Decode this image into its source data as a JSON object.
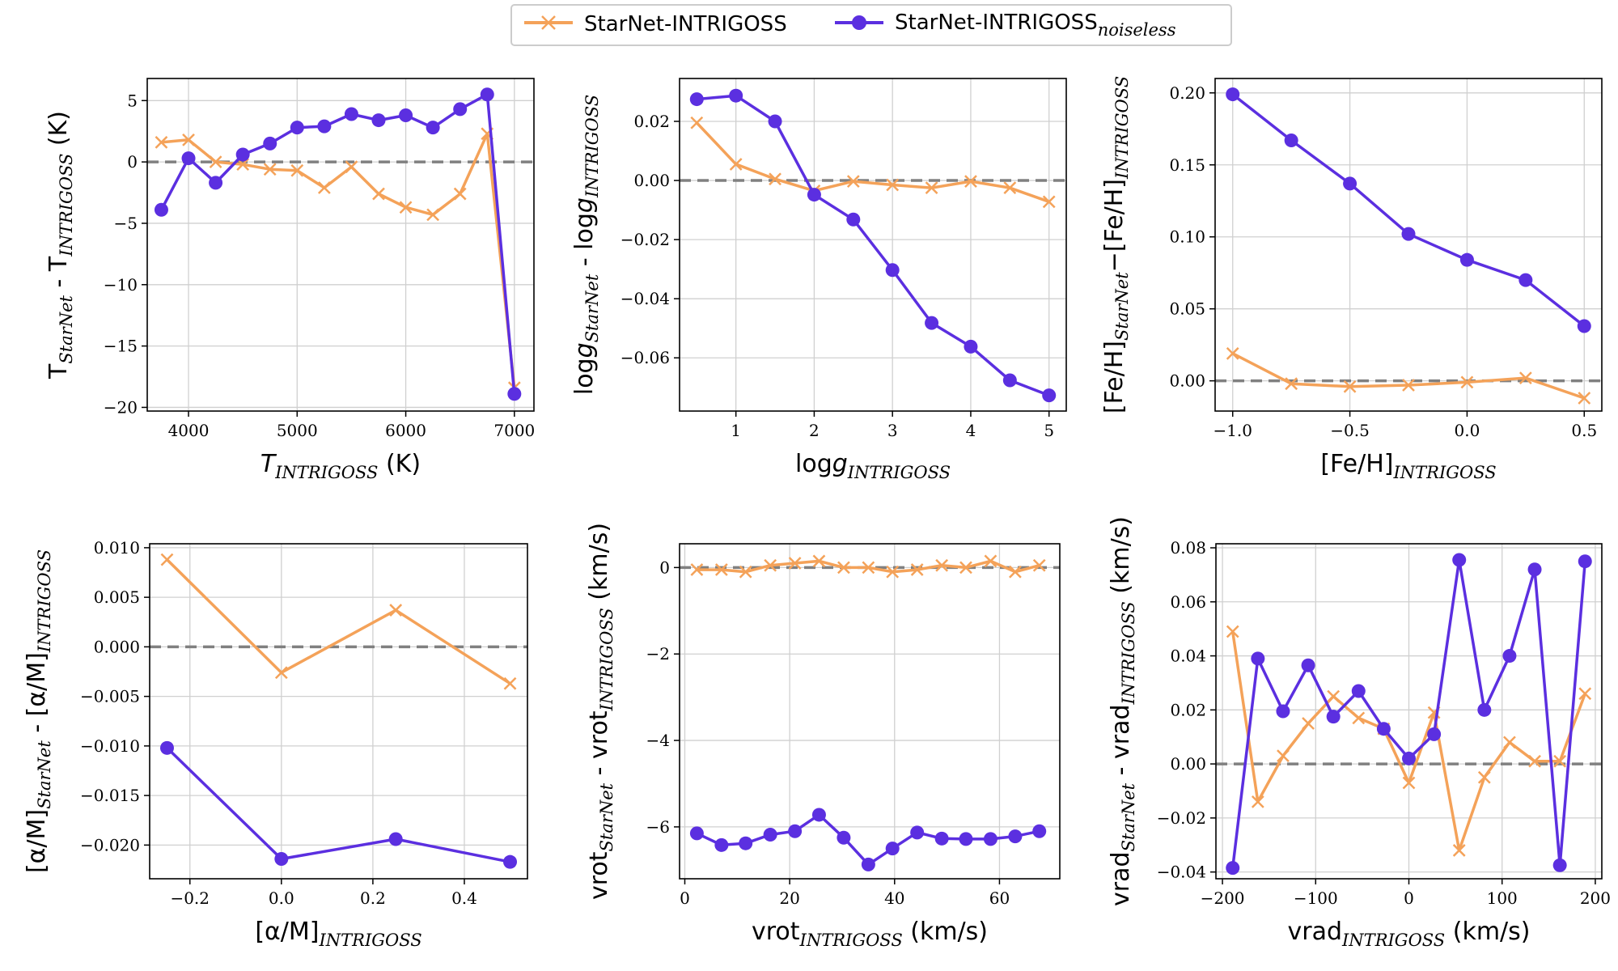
{
  "colors": {
    "noisy": "#F4A259",
    "noiseless": "#5B2FE0",
    "zero_line": "#808080",
    "grid": "#d0d0d0"
  },
  "legend": {
    "entries": [
      {
        "label": "StarNet-INTRIGOSS",
        "sub": "",
        "marker": "x",
        "series": "noisy"
      },
      {
        "label": "StarNet-INTRIGOSS",
        "sub": "noiseless",
        "marker": "o",
        "series": "noiseless"
      }
    ],
    "placement": "top-center"
  },
  "chart_data": [
    {
      "id": "teff",
      "type": "line",
      "xlabel": {
        "pre": "T",
        "sub": "INTRIGOSS",
        "post": " (K)",
        "italic_main": true
      },
      "ylabel": {
        "parts": [
          [
            "T",
            ""
          ],
          [
            "StarNet",
            "sub"
          ],
          [
            " - T",
            ""
          ],
          [
            "INTRIGOSS",
            "sub"
          ],
          [
            " (K)",
            ""
          ]
        ]
      },
      "xlim": [
        3620,
        7180
      ],
      "ylim": [
        -20.3,
        6.8
      ],
      "xticks": [
        4000,
        5000,
        6000,
        7000
      ],
      "xtick_labels": [
        "4000",
        "5000",
        "6000",
        "7000"
      ],
      "yticks": [
        -20,
        -15,
        -10,
        -5,
        0,
        5
      ],
      "ytick_labels": [
        "−20",
        "−15",
        "−10",
        "−5",
        "0",
        "5"
      ],
      "series": [
        {
          "name": "StarNet-INTRIGOSS",
          "key": "noisy",
          "marker": "x",
          "x": [
            3750,
            4000,
            4250,
            4500,
            4750,
            5000,
            5250,
            5500,
            5750,
            6000,
            6250,
            6500,
            6750,
            7000
          ],
          "y": [
            1.6,
            1.8,
            0.0,
            -0.2,
            -0.6,
            -0.7,
            -2.1,
            -0.4,
            -2.6,
            -3.7,
            -4.3,
            -2.6,
            2.3,
            -18.4
          ]
        },
        {
          "name": "StarNet-INTRIGOSS noiseless",
          "key": "noiseless",
          "marker": "o",
          "x": [
            3750,
            4000,
            4250,
            4500,
            4750,
            5000,
            5250,
            5500,
            5750,
            6000,
            6250,
            6500,
            6750,
            7000
          ],
          "y": [
            -3.9,
            0.3,
            -1.7,
            0.6,
            1.5,
            2.8,
            2.9,
            3.9,
            3.4,
            3.8,
            2.8,
            4.3,
            5.5,
            -18.9
          ]
        }
      ]
    },
    {
      "id": "logg",
      "type": "line",
      "xlabel": {
        "pre": "log",
        "sub": "INTRIGOSS",
        "post": "",
        "g": true
      },
      "ylabel": {
        "parts": [
          [
            "log",
            ""
          ],
          [
            "g",
            "it"
          ],
          [
            "StarNet",
            "sub"
          ],
          [
            " - log",
            ""
          ],
          [
            "g",
            "it"
          ],
          [
            "INTRIGOSS",
            "sub"
          ]
        ]
      },
      "xlim": [
        0.28,
        5.22
      ],
      "ylim": [
        -0.078,
        0.0345
      ],
      "xticks": [
        1,
        2,
        3,
        4,
        5
      ],
      "xtick_labels": [
        "1",
        "2",
        "3",
        "4",
        "5"
      ],
      "yticks": [
        -0.06,
        -0.04,
        -0.02,
        0.0,
        0.02
      ],
      "ytick_labels": [
        "−0.06",
        "−0.04",
        "−0.02",
        "0.00",
        "0.02"
      ],
      "series": [
        {
          "name": "StarNet-INTRIGOSS",
          "key": "noisy",
          "marker": "x",
          "x": [
            0.5,
            1.0,
            1.5,
            2.0,
            2.5,
            3.0,
            3.5,
            4.0,
            4.5,
            5.0
          ],
          "y": [
            0.0195,
            0.0055,
            0.0005,
            -0.0035,
            -0.0003,
            -0.0015,
            -0.0025,
            -0.0003,
            -0.0025,
            -0.0072
          ]
        },
        {
          "name": "StarNet-INTRIGOSS noiseless",
          "key": "noiseless",
          "marker": "o",
          "x": [
            0.5,
            1.0,
            1.5,
            2.0,
            2.5,
            3.0,
            3.5,
            4.0,
            4.5,
            5.0
          ],
          "y": [
            0.0275,
            0.0287,
            0.02,
            -0.0048,
            -0.0132,
            -0.0303,
            -0.0482,
            -0.0562,
            -0.0676,
            -0.0727
          ]
        }
      ]
    },
    {
      "id": "feh",
      "type": "line",
      "xlabel": {
        "pre": "[Fe/H]",
        "sub": "INTRIGOSS",
        "post": ""
      },
      "ylabel": {
        "parts": [
          [
            "[Fe/H]",
            ""
          ],
          [
            "StarNet",
            "sub"
          ],
          [
            "−[Fe/H]",
            ""
          ],
          [
            "INTRIGOSS",
            "sub"
          ]
        ]
      },
      "xlim": [
        -1.075,
        0.575
      ],
      "ylim": [
        -0.021,
        0.21
      ],
      "xticks": [
        -1.0,
        -0.5,
        0.0,
        0.5
      ],
      "xtick_labels": [
        "−1.0",
        "−0.5",
        "0.0",
        "0.5"
      ],
      "yticks": [
        0.0,
        0.05,
        0.1,
        0.15,
        0.2
      ],
      "ytick_labels": [
        "0.00",
        "0.05",
        "0.10",
        "0.15",
        "0.20"
      ],
      "series": [
        {
          "name": "StarNet-INTRIGOSS",
          "key": "noisy",
          "marker": "x",
          "x": [
            -1.0,
            -0.75,
            -0.5,
            -0.25,
            0.0,
            0.25,
            0.5
          ],
          "y": [
            0.019,
            -0.002,
            -0.004,
            -0.003,
            -0.001,
            0.002,
            -0.012
          ]
        },
        {
          "name": "StarNet-INTRIGOSS noiseless",
          "key": "noiseless",
          "marker": "o",
          "x": [
            -1.0,
            -0.75,
            -0.5,
            -0.25,
            0.0,
            0.25,
            0.5
          ],
          "y": [
            0.199,
            0.167,
            0.137,
            0.102,
            0.084,
            0.07,
            0.038
          ]
        }
      ]
    },
    {
      "id": "alpha",
      "type": "line",
      "xlabel": {
        "pre": "[α/M]",
        "sub": "INTRIGOSS",
        "post": ""
      },
      "ylabel": {
        "parts": [
          [
            "[α/M]",
            ""
          ],
          [
            "StarNet",
            "sub"
          ],
          [
            " - [α/M]",
            ""
          ],
          [
            "INTRIGOSS",
            "sub"
          ]
        ]
      },
      "xlim": [
        -0.288,
        0.538
      ],
      "ylim": [
        -0.0234,
        0.0104
      ],
      "xticks": [
        -0.2,
        0.0,
        0.2,
        0.4
      ],
      "xtick_labels": [
        "−0.2",
        "0.0",
        "0.2",
        "0.4"
      ],
      "yticks": [
        -0.02,
        -0.015,
        -0.01,
        -0.005,
        0.0,
        0.005,
        0.01
      ],
      "ytick_labels": [
        "−0.020",
        "−0.015",
        "−0.010",
        "−0.005",
        "0.000",
        "0.005",
        "0.010"
      ],
      "series": [
        {
          "name": "StarNet-INTRIGOSS",
          "key": "noisy",
          "marker": "x",
          "x": [
            -0.25,
            0.0,
            0.25,
            0.5
          ],
          "y": [
            0.0088,
            -0.0026,
            0.0037,
            -0.0037
          ]
        },
        {
          "name": "StarNet-INTRIGOSS noiseless",
          "key": "noiseless",
          "marker": "o",
          "x": [
            -0.25,
            0.0,
            0.25,
            0.5
          ],
          "y": [
            -0.0102,
            -0.0214,
            -0.0194,
            -0.0217
          ]
        }
      ]
    },
    {
      "id": "vrot",
      "type": "line",
      "xlabel": {
        "pre": "vrot",
        "sub": "INTRIGOSS",
        "post": " (km/s)"
      },
      "ylabel": {
        "parts": [
          [
            "vrot",
            ""
          ],
          [
            "StarNet",
            "sub"
          ],
          [
            " - vrot",
            ""
          ],
          [
            "INTRIGOSS",
            "sub"
          ],
          [
            " (km/s)",
            ""
          ]
        ]
      },
      "xlim": [
        -1.0,
        71.5
      ],
      "ylim": [
        -7.2,
        0.55
      ],
      "xticks": [
        0,
        20,
        40,
        60
      ],
      "xtick_labels": [
        "0",
        "20",
        "40",
        "60"
      ],
      "yticks": [
        -6,
        -4,
        -2,
        0
      ],
      "ytick_labels": [
        "−6",
        "−4",
        "−2",
        "0"
      ],
      "series": [
        {
          "name": "StarNet-INTRIGOSS",
          "key": "noisy",
          "marker": "x",
          "x": [
            2.3,
            7.0,
            11.6,
            16.3,
            21.0,
            25.6,
            30.3,
            35.0,
            39.6,
            44.3,
            49.0,
            53.6,
            58.3,
            63.0,
            67.6
          ],
          "y": [
            -0.05,
            -0.05,
            -0.1,
            0.05,
            0.1,
            0.15,
            0.0,
            0.0,
            -0.1,
            -0.05,
            0.05,
            0.0,
            0.15,
            -0.1,
            0.05
          ]
        },
        {
          "name": "StarNet-INTRIGOSS noiseless",
          "key": "noiseless",
          "marker": "o",
          "x": [
            2.3,
            7.0,
            11.6,
            16.3,
            21.0,
            25.6,
            30.3,
            35.0,
            39.6,
            44.3,
            49.0,
            53.6,
            58.3,
            63.0,
            67.6
          ],
          "y": [
            -6.15,
            -6.42,
            -6.38,
            -6.18,
            -6.1,
            -5.72,
            -6.25,
            -6.87,
            -6.5,
            -6.13,
            -6.27,
            -6.28,
            -6.28,
            -6.22,
            -6.1
          ]
        }
      ]
    },
    {
      "id": "vrad",
      "type": "line",
      "xlabel": {
        "pre": "vrad",
        "sub": "INTRIGOSS",
        "post": " (km/s)"
      },
      "ylabel": {
        "parts": [
          [
            "vrad",
            ""
          ],
          [
            "StarNet",
            "sub"
          ],
          [
            " - vrad",
            ""
          ],
          [
            "INTRIGOSS",
            "sub"
          ],
          [
            " (km/s)",
            ""
          ]
        ]
      },
      "xlim": [
        -207,
        207
      ],
      "ylim": [
        -0.0425,
        0.0815
      ],
      "xticks": [
        -200,
        -100,
        0,
        100,
        200
      ],
      "xtick_labels": [
        "−200",
        "−100",
        "0",
        "100",
        "200"
      ],
      "yticks": [
        -0.04,
        -0.02,
        0.0,
        0.02,
        0.04,
        0.06,
        0.08
      ],
      "ytick_labels": [
        "−0.04",
        "−0.02",
        "0.00",
        "0.02",
        "0.04",
        "0.06",
        "0.08"
      ],
      "series": [
        {
          "name": "StarNet-INTRIGOSS",
          "key": "noisy",
          "marker": "x",
          "x": [
            -189,
            -162,
            -135,
            -108,
            -81,
            -54,
            -27,
            0,
            27,
            54,
            81,
            108,
            135,
            162,
            189
          ],
          "y": [
            0.049,
            -0.014,
            0.003,
            0.015,
            0.025,
            0.017,
            0.013,
            -0.007,
            0.019,
            -0.032,
            -0.005,
            0.008,
            0.001,
            0.001,
            0.026
          ]
        },
        {
          "name": "StarNet-INTRIGOSS noiseless",
          "key": "noiseless",
          "marker": "o",
          "x": [
            -189,
            -162,
            -135,
            -108,
            -81,
            -54,
            -27,
            0,
            27,
            54,
            81,
            108,
            135,
            162,
            189
          ],
          "y": [
            -0.0385,
            0.039,
            0.0195,
            0.0365,
            0.0175,
            0.027,
            0.013,
            0.002,
            0.011,
            0.0755,
            0.02,
            0.04,
            0.072,
            -0.0375,
            0.075
          ]
        }
      ]
    }
  ]
}
